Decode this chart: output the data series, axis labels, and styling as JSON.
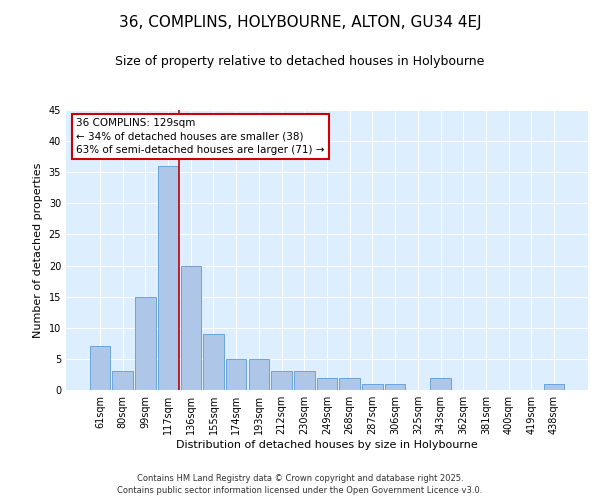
{
  "title": "36, COMPLINS, HOLYBOURNE, ALTON, GU34 4EJ",
  "subtitle": "Size of property relative to detached houses in Holybourne",
  "xlabel": "Distribution of detached houses by size in Holybourne",
  "ylabel": "Number of detached properties",
  "categories": [
    "61sqm",
    "80sqm",
    "99sqm",
    "117sqm",
    "136sqm",
    "155sqm",
    "174sqm",
    "193sqm",
    "212sqm",
    "230sqm",
    "249sqm",
    "268sqm",
    "287sqm",
    "306sqm",
    "325sqm",
    "343sqm",
    "362sqm",
    "381sqm",
    "400sqm",
    "419sqm",
    "438sqm"
  ],
  "values": [
    7,
    3,
    15,
    36,
    20,
    9,
    5,
    5,
    3,
    3,
    2,
    2,
    1,
    1,
    0,
    2,
    0,
    0,
    0,
    0,
    1
  ],
  "bar_color": "#aec6e8",
  "bar_edge_color": "#5b9bd5",
  "annotation_line1": "36 COMPLINS: 129sqm",
  "annotation_line2": "← 34% of detached houses are smaller (38)",
  "annotation_line3": "63% of semi-detached houses are larger (71) →",
  "annotation_box_color": "#ffffff",
  "annotation_box_edge_color": "#cc0000",
  "vline_color": "#cc0000",
  "ylim": [
    0,
    45
  ],
  "yticks": [
    0,
    5,
    10,
    15,
    20,
    25,
    30,
    35,
    40,
    45
  ],
  "bg_color": "#ddeeff",
  "grid_color": "#ffffff",
  "footer": "Contains HM Land Registry data © Crown copyright and database right 2025.\nContains public sector information licensed under the Open Government Licence v3.0.",
  "title_fontsize": 11,
  "subtitle_fontsize": 9,
  "axis_label_fontsize": 8,
  "tick_fontsize": 7,
  "annotation_fontsize": 7.5,
  "footer_fontsize": 6
}
